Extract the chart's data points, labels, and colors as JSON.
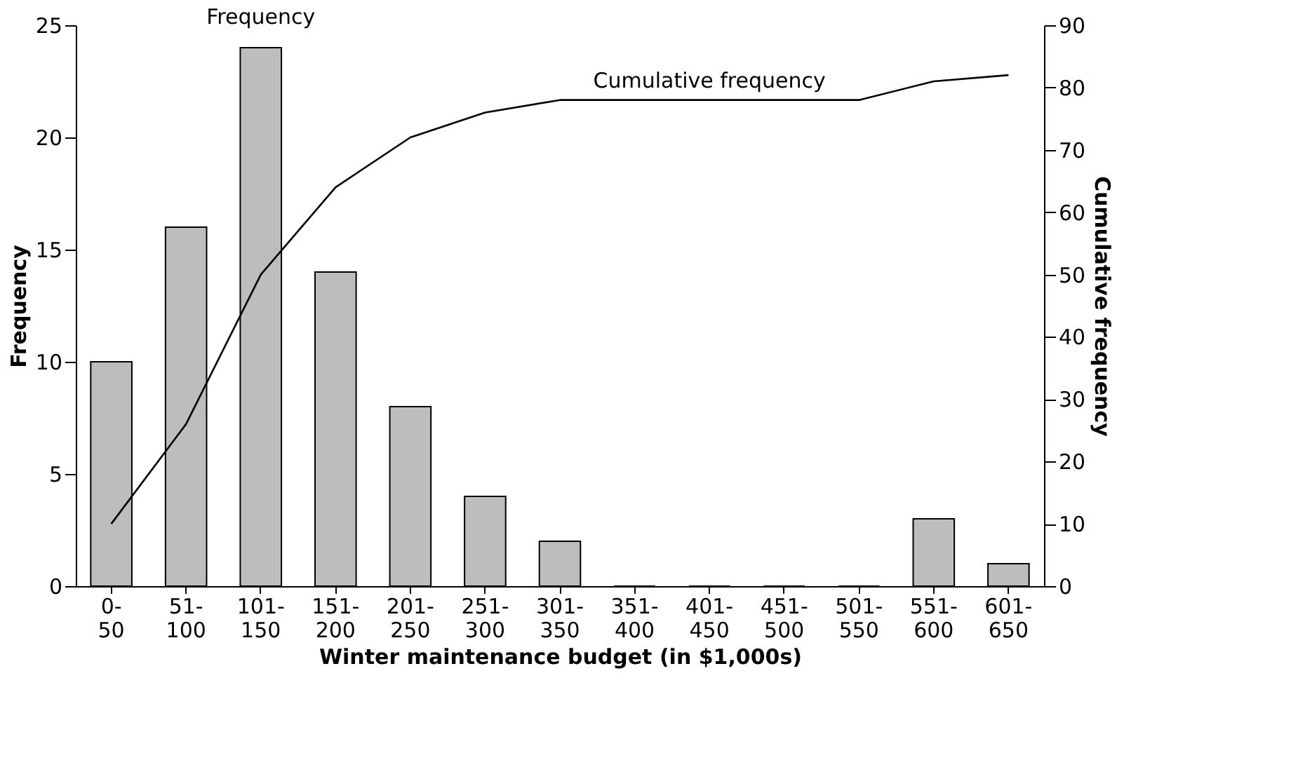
{
  "chart_data": {
    "type": "bar",
    "xlabel": "Winter maintenance budget (in $1,000s)",
    "ylabel": "Frequency",
    "y2label": "Cumulative frequency",
    "categories": [
      "0-50",
      "51-100",
      "101-150",
      "151-200",
      "201-250",
      "251-300",
      "301-350",
      "351-400",
      "401-450",
      "451-500",
      "501-550",
      "551-600",
      "601-650"
    ],
    "series": [
      {
        "name": "Frequency",
        "color": "#bdbdbd",
        "values": [
          10,
          16,
          24,
          14,
          8,
          4,
          2,
          0,
          0,
          0,
          0,
          3,
          1
        ]
      },
      {
        "name": "Cumulative frequency",
        "type": "line",
        "axis": "y2",
        "color": "#000000",
        "values": [
          10,
          26,
          50,
          64,
          72,
          76,
          78,
          78,
          78,
          78,
          78,
          81,
          82
        ]
      }
    ],
    "ylim": [
      0,
      25
    ],
    "yticks": [
      0,
      5,
      10,
      15,
      20,
      25
    ],
    "y2lim": [
      0,
      90
    ],
    "y2ticks": [
      0,
      10,
      20,
      30,
      40,
      50,
      60,
      70,
      80,
      90
    ]
  }
}
